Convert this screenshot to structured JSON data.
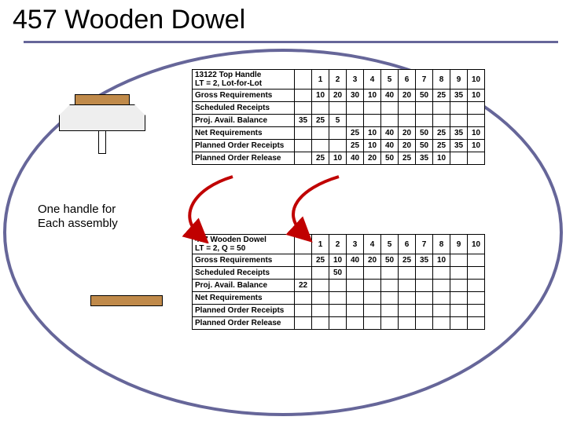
{
  "title": "457 Wooden Dowel",
  "caption_line1": "One handle for",
  "caption_line2": "Each assembly",
  "colors": {
    "accent": "#666699",
    "wood": "#c08a4a",
    "arrow": "#c00000"
  },
  "table1": {
    "header": "13122 Top Handle\nLT = 2, Lot-for-Lot",
    "periods": [
      "1",
      "2",
      "3",
      "4",
      "5",
      "6",
      "7",
      "8",
      "9",
      "10"
    ],
    "rows": [
      {
        "label": "Gross Requirements",
        "pre": "",
        "cells": [
          "10",
          "20",
          "30",
          "10",
          "40",
          "20",
          "50",
          "25",
          "35",
          "10"
        ]
      },
      {
        "label": "Scheduled Receipts",
        "pre": "",
        "cells": [
          "",
          "",
          "",
          "",
          "",
          "",
          "",
          "",
          "",
          ""
        ]
      },
      {
        "label": "Proj. Avail. Balance",
        "pre": "35",
        "cells": [
          "25",
          "5",
          "",
          "",
          "",
          "",
          "",
          "",
          "",
          ""
        ]
      },
      {
        "label": "Net Requirements",
        "pre": "",
        "cells": [
          "",
          "",
          "25",
          "10",
          "40",
          "20",
          "50",
          "25",
          "35",
          "10"
        ]
      },
      {
        "label": "Planned Order Receipts",
        "pre": "",
        "cells": [
          "",
          "",
          "25",
          "10",
          "40",
          "20",
          "50",
          "25",
          "35",
          "10"
        ]
      },
      {
        "label": "Planned Order Release",
        "pre": "",
        "cells": [
          "25",
          "10",
          "40",
          "20",
          "50",
          "25",
          "35",
          "10",
          "",
          ""
        ]
      }
    ]
  },
  "table2": {
    "header": "457 Wooden Dowel\nLT = 2, Q = 50",
    "periods": [
      "1",
      "2",
      "3",
      "4",
      "5",
      "6",
      "7",
      "8",
      "9",
      "10"
    ],
    "rows": [
      {
        "label": "Gross Requirements",
        "pre": "",
        "cells": [
          "25",
          "10",
          "40",
          "20",
          "50",
          "25",
          "35",
          "10",
          "",
          ""
        ]
      },
      {
        "label": "Scheduled Receipts",
        "pre": "",
        "cells": [
          "",
          "50",
          "",
          "",
          "",
          "",
          "",
          "",
          "",
          ""
        ]
      },
      {
        "label": "Proj. Avail. Balance",
        "pre": "22",
        "cells": [
          "",
          "",
          "",
          "",
          "",
          "",
          "",
          "",
          "",
          ""
        ]
      },
      {
        "label": "Net Requirements",
        "pre": "",
        "cells": [
          "",
          "",
          "",
          "",
          "",
          "",
          "",
          "",
          "",
          ""
        ]
      },
      {
        "label": "Planned Order Receipts",
        "pre": "",
        "cells": [
          "",
          "",
          "",
          "",
          "",
          "",
          "",
          "",
          "",
          ""
        ]
      },
      {
        "label": "Planned Order Release",
        "pre": "",
        "cells": [
          "",
          "",
          "",
          "",
          "",
          "",
          "",
          "",
          "",
          ""
        ]
      }
    ]
  }
}
